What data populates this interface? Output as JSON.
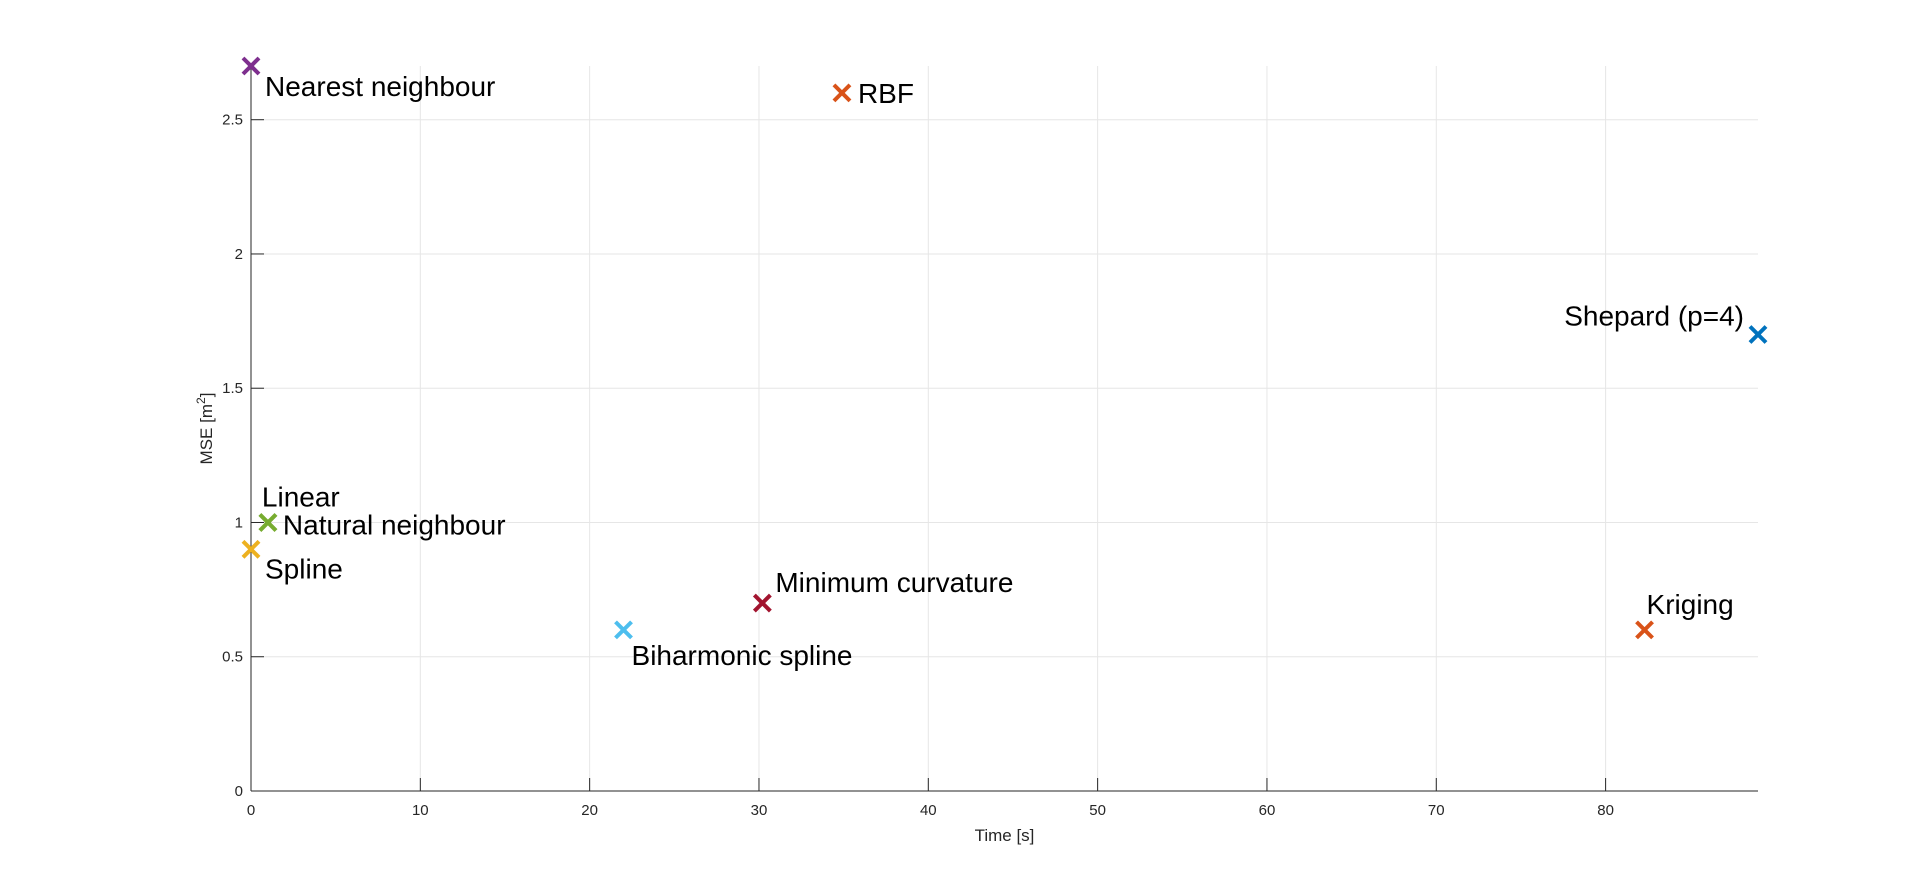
{
  "chart_data": {
    "type": "scatter",
    "title": "",
    "xlabel": "Time [s]",
    "ylabel_main": "MSE [m",
    "ylabel_sup": "2",
    "ylabel_close": "]",
    "xlim": [
      0,
      89
    ],
    "ylim": [
      0,
      2.7
    ],
    "xticks": [
      0,
      10,
      20,
      30,
      40,
      50,
      60,
      70,
      80
    ],
    "xtick_labels": [
      "0",
      "10",
      "20",
      "30",
      "40",
      "50",
      "60",
      "70",
      "80"
    ],
    "yticks": [
      0,
      0.5,
      1,
      1.5,
      2,
      2.5
    ],
    "ytick_labels": [
      "0",
      "0.5",
      "1",
      "1.5",
      "2",
      "2.5"
    ],
    "grid": true,
    "marker": "x",
    "points": [
      {
        "label": "Nearest neighbour",
        "x": 0.0,
        "y": 2.7,
        "color": "#7e2f8e",
        "anchor": "start",
        "dx": 14,
        "dy": 30
      },
      {
        "label": "RBF",
        "x": 34.9,
        "y": 2.6,
        "color": "#d95319",
        "anchor": "start",
        "dx": 16,
        "dy": 10
      },
      {
        "label": "Shepard (p=4)",
        "x": 89.0,
        "y": 1.7,
        "color": "#0072bd",
        "anchor": "end",
        "dx": -14,
        "dy": -9
      },
      {
        "label": "Linear",
        "x": 1.0,
        "y": 1.0,
        "color": "#77ac30",
        "anchor": "start",
        "dx": -6,
        "dy": -16
      },
      {
        "label": "Natural neighbour",
        "x": 1.0,
        "y": 1.0,
        "color": "#77ac30",
        "anchor": "start",
        "dx": 15,
        "dy": 12
      },
      {
        "label": "Spline",
        "x": 0.0,
        "y": 0.9,
        "color": "#edb120",
        "anchor": "start",
        "dx": 14,
        "dy": 29
      },
      {
        "label": "Biharmonic spline",
        "x": 22.0,
        "y": 0.6,
        "color": "#4dbeee",
        "anchor": "start",
        "dx": 8,
        "dy": 35
      },
      {
        "label": "Minimum curvature",
        "x": 30.2,
        "y": 0.7,
        "color": "#a2142f",
        "anchor": "start",
        "dx": 13,
        "dy": -11
      },
      {
        "label": "Kriging",
        "x": 82.3,
        "y": 0.6,
        "color": "#d95319",
        "anchor": "start",
        "dx": 2,
        "dy": -16
      }
    ]
  }
}
